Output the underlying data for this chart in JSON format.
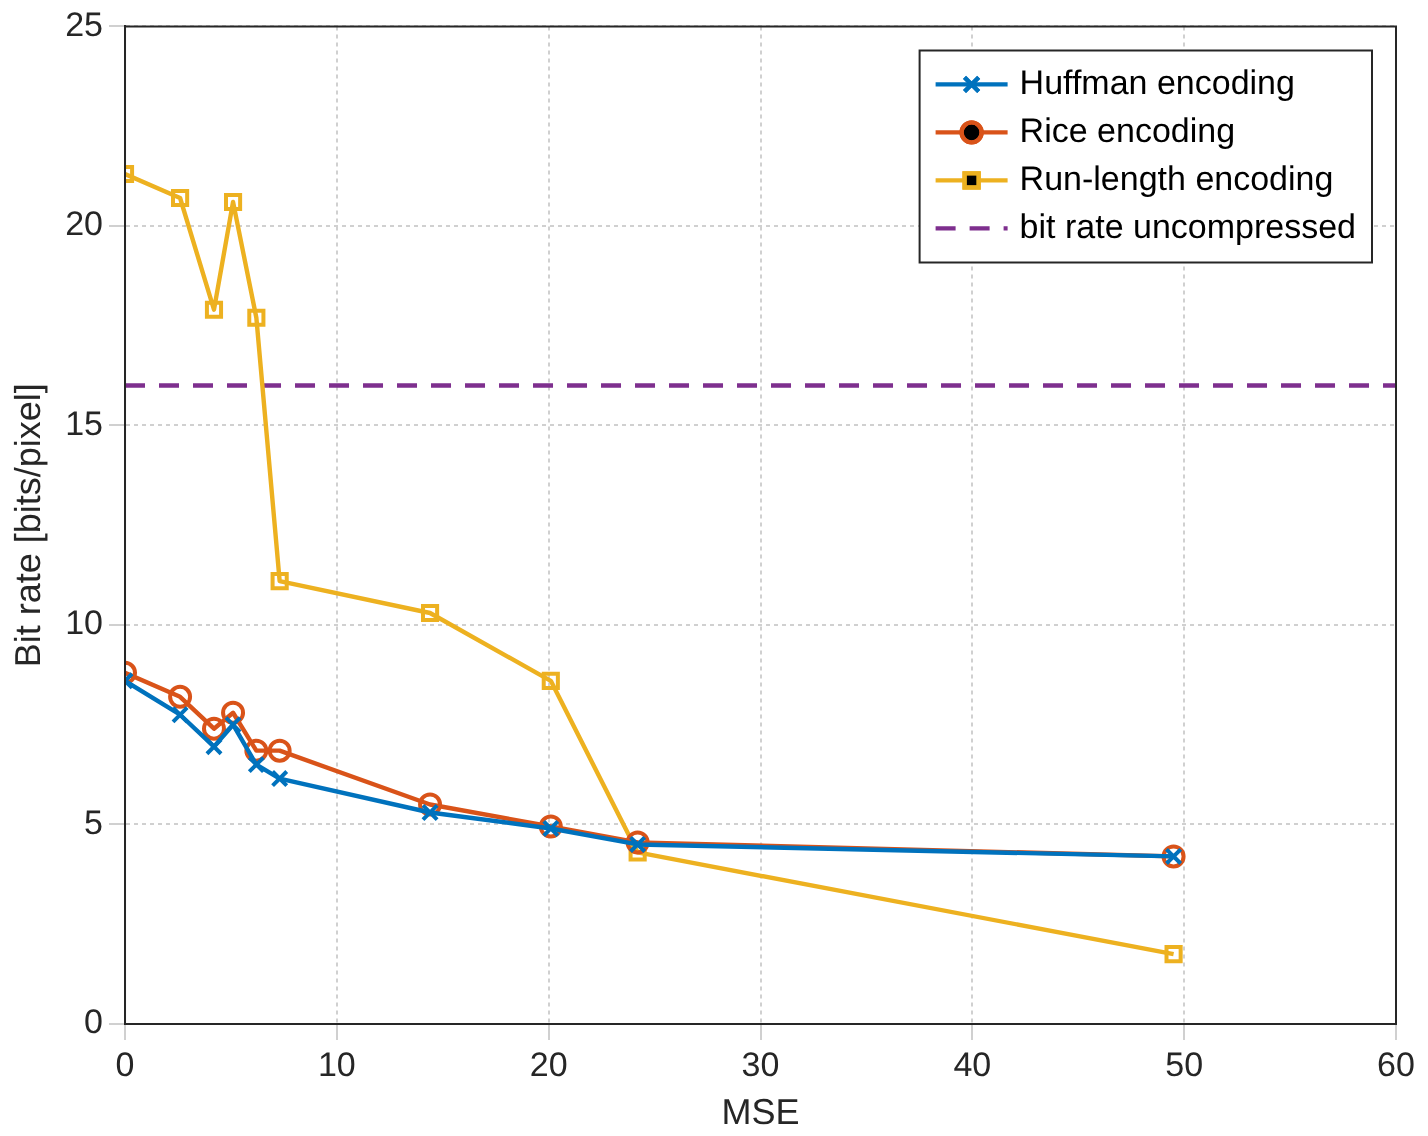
{
  "chart_data": {
    "type": "line",
    "xlabel": "MSE",
    "ylabel": "Bit rate [bits/pixel]",
    "x": [
      0,
      2.6,
      4.2,
      5.1,
      6.2,
      7.3,
      14.4,
      20.1,
      24.2,
      49.5
    ],
    "series": [
      {
        "name": "Huffman encoding",
        "color": "#0072bd",
        "marker": "cross",
        "values": [
          8.6,
          7.75,
          6.95,
          7.5,
          6.5,
          6.15,
          5.3,
          4.9,
          4.5,
          4.2
        ]
      },
      {
        "name": "Rice encoding",
        "color": "#d95319",
        "marker": "circle",
        "values": [
          8.8,
          8.2,
          7.4,
          7.8,
          6.85,
          6.85,
          5.5,
          4.95,
          4.55,
          4.2
        ]
      },
      {
        "name": "Run-length encoding",
        "color": "#edb120",
        "marker": "square",
        "values": [
          21.3,
          20.7,
          17.9,
          20.6,
          17.7,
          11.1,
          10.3,
          8.6,
          4.3,
          1.75
        ]
      }
    ],
    "ref_lines": [
      {
        "axis": "y",
        "value": 16,
        "label": "bit rate uncompressed",
        "color": "#7e2f8e",
        "line_style": "dashed"
      }
    ],
    "xlim": [
      0,
      60
    ],
    "xticks": [
      0,
      10,
      20,
      30,
      40,
      50,
      60
    ],
    "ylim": [
      0,
      25
    ],
    "yticks": [
      0,
      5,
      10,
      15,
      20,
      25
    ],
    "grid": true,
    "legend": "top right"
  }
}
